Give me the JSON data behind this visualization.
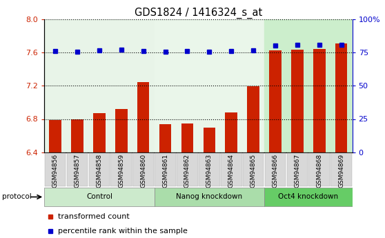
{
  "title": "GDS1824 / 1416324_s_at",
  "samples": [
    "GSM94856",
    "GSM94857",
    "GSM94858",
    "GSM94859",
    "GSM94860",
    "GSM94861",
    "GSM94862",
    "GSM94863",
    "GSM94864",
    "GSM94865",
    "GSM94866",
    "GSM94867",
    "GSM94868",
    "GSM94869"
  ],
  "transformed_count": [
    6.79,
    6.8,
    6.87,
    6.92,
    7.24,
    6.74,
    6.75,
    6.7,
    6.88,
    7.19,
    7.62,
    7.63,
    7.64,
    7.71
  ],
  "percentile_rank": [
    76.0,
    75.5,
    76.5,
    77.0,
    76.0,
    75.5,
    75.8,
    75.5,
    76.2,
    76.5,
    80.0,
    80.5,
    80.5,
    80.5
  ],
  "ylim_left": [
    6.4,
    8.0
  ],
  "ylim_right": [
    0,
    100
  ],
  "yticks_left": [
    6.4,
    6.8,
    7.2,
    7.6,
    8.0
  ],
  "yticks_right": [
    0,
    25,
    50,
    75,
    100
  ],
  "ytick_labels_right": [
    "0",
    "25",
    "50",
    "75",
    "100%"
  ],
  "groups": [
    {
      "label": "Control",
      "start": 0,
      "end": 5,
      "color": "#cceacc"
    },
    {
      "label": "Nanog knockdown",
      "start": 5,
      "end": 10,
      "color": "#aaddaa"
    },
    {
      "label": "Oct4 knockdown",
      "start": 10,
      "end": 14,
      "color": "#66cc66"
    }
  ],
  "xtick_bg_color": "#d8d8d8",
  "bar_color": "#cc2200",
  "dot_color": "#0000cc",
  "legend_red_label": "transformed count",
  "legend_blue_label": "percentile rank within the sample",
  "protocol_label": "protocol"
}
